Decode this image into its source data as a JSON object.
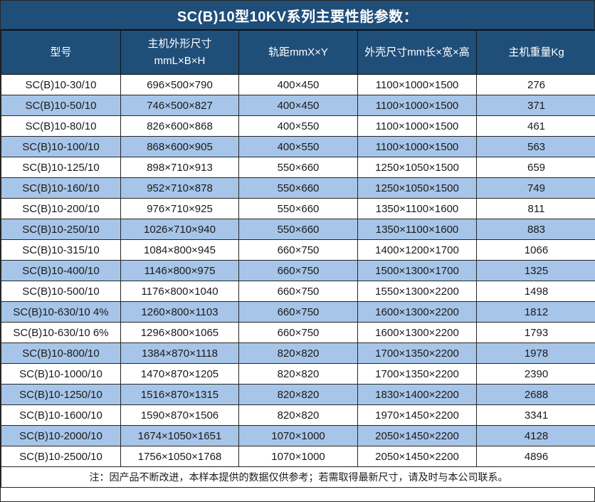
{
  "title": "SC(B)10型10KV系列主要性能参数：",
  "table": {
    "headers": [
      {
        "lines": [
          "型号"
        ]
      },
      {
        "lines": [
          "主机外形尺寸",
          "mmL×B×H"
        ]
      },
      {
        "lines": [
          "轨距mmX×Y"
        ]
      },
      {
        "lines": [
          "外壳尺寸mm长×宽×高"
        ]
      },
      {
        "lines": [
          "主机重量Kg"
        ]
      }
    ],
    "rows": [
      [
        "SC(B)10-30/10",
        "696×500×790",
        "400×450",
        "1100×1000×1500",
        "276"
      ],
      [
        "SC(B)10-50/10",
        "746×500×827",
        "400×450",
        "1100×1000×1500",
        "371"
      ],
      [
        "SC(B)10-80/10",
        "826×600×868",
        "400×550",
        "1100×1000×1500",
        "461"
      ],
      [
        "SC(B)10-100/10",
        "868×600×905",
        "400×550",
        "1100×1000×1500",
        "563"
      ],
      [
        "SC(B)10-125/10",
        "898×710×913",
        "550×660",
        "1250×1050×1500",
        "659"
      ],
      [
        "SC(B)10-160/10",
        "952×710×878",
        "550×660",
        "1250×1050×1500",
        "749"
      ],
      [
        "SC(B)10-200/10",
        "976×710×925",
        "550×660",
        "1350×1100×1600",
        "811"
      ],
      [
        "SC(B)10-250/10",
        "1026×710×940",
        "550×660",
        "1350×1100×1600",
        "883"
      ],
      [
        "SC(B)10-315/10",
        "1084×800×945",
        "660×750",
        "1400×1200×1700",
        "1066"
      ],
      [
        "SC(B)10-400/10",
        "1146×800×975",
        "660×750",
        "1500×1300×1700",
        "1325"
      ],
      [
        "SC(B)10-500/10",
        "1176×800×1040",
        "660×750",
        "1550×1300×2200",
        "1498"
      ],
      [
        "SC(B)10-630/10 4%",
        "1260×800×1103",
        "660×750",
        "1600×1300×2200",
        "1812"
      ],
      [
        "SC(B)10-630/10 6%",
        "1296×800×1065",
        "660×750",
        "1600×1300×2200",
        "1793"
      ],
      [
        "SC(B)10-800/10",
        "1384×870×1118",
        "820×820",
        "1700×1350×2200",
        "1978"
      ],
      [
        "SC(B)10-1000/10",
        "1470×870×1205",
        "820×820",
        "1700×1350×2200",
        "2390"
      ],
      [
        "SC(B)10-1250/10",
        "1516×870×1315",
        "820×820",
        "1830×1400×2200",
        "2688"
      ],
      [
        "SC(B)10-1600/10",
        "1590×870×1506",
        "820×820",
        "1970×1450×2200",
        "3341"
      ],
      [
        "SC(B)10-2000/10",
        "1674×1050×1651",
        "1070×1000",
        "2050×1450×2200",
        "4128"
      ],
      [
        "SC(B)10-2500/10",
        "1756×1050×1768",
        "1070×1000",
        "2050×1450×2200",
        "4896"
      ]
    ],
    "footer_note": "注：因产品不断改进，本样本提供的数据仅供参考；若需取得最新尺寸，请及时与本公司联系。"
  },
  "colors": {
    "header_bg": "#1F4E79",
    "header_text": "#FFFFFF",
    "alt_row_bg": "#A6C5E8",
    "border": "#262626",
    "border_dark": "#111111",
    "text": "#1A1A1A"
  }
}
